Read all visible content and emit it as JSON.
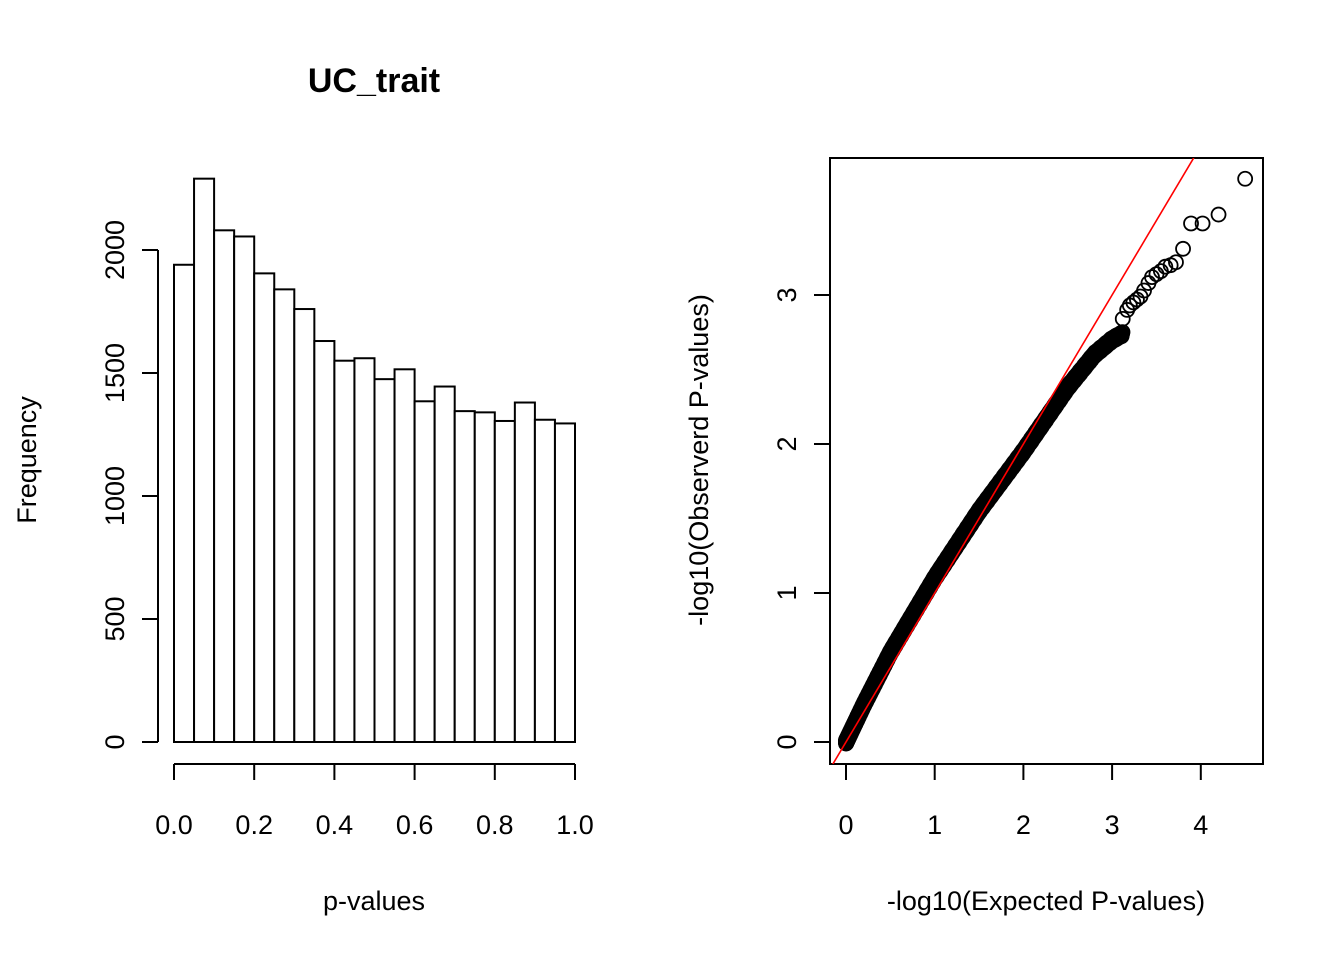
{
  "chart_data": [
    {
      "type": "bar",
      "title": "UC_trait",
      "xlabel": "p-values",
      "ylabel": "Frequency",
      "xlim": [
        0,
        1
      ],
      "ylim": [
        0,
        2300
      ],
      "x_ticks": [
        "0.0",
        "0.2",
        "0.4",
        "0.6",
        "0.8",
        "1.0"
      ],
      "y_ticks": [
        "0",
        "500",
        "1000",
        "1500",
        "2000"
      ],
      "bin_width": 0.05,
      "bins": [
        0.0,
        0.05,
        0.1,
        0.15,
        0.2,
        0.25,
        0.3,
        0.35,
        0.4,
        0.45,
        0.5,
        0.55,
        0.6,
        0.65,
        0.7,
        0.75,
        0.8,
        0.85,
        0.9,
        0.95
      ],
      "values": [
        1940,
        2290,
        2080,
        2055,
        1905,
        1840,
        1760,
        1630,
        1550,
        1560,
        1475,
        1515,
        1385,
        1445,
        1345,
        1340,
        1305,
        1380,
        1310,
        1295
      ]
    },
    {
      "type": "scatter",
      "title": "",
      "xlabel": "-log10(Expected P-values)",
      "ylabel": "-log10(Observerd P-values)",
      "xlim": [
        -0.18,
        4.7
      ],
      "ylim": [
        -0.14,
        3.9
      ],
      "x_ticks": [
        "0",
        "1",
        "2",
        "3",
        "4"
      ],
      "y_ticks": [
        "0",
        "1",
        "2",
        "3"
      ],
      "reference_line": {
        "slope": 1,
        "intercept": 0,
        "color": "#ff0000"
      },
      "n_points": 1000,
      "tail_points": {
        "x": [
          3.12,
          3.17,
          3.2,
          3.24,
          3.28,
          3.32,
          3.36,
          3.41,
          3.45,
          3.5,
          3.55,
          3.6,
          3.66,
          3.72,
          3.8,
          3.89,
          4.02,
          4.2,
          4.5
        ],
        "y": [
          2.84,
          2.9,
          2.93,
          2.95,
          2.97,
          2.99,
          3.03,
          3.08,
          3.12,
          3.14,
          3.16,
          3.19,
          3.2,
          3.22,
          3.31,
          3.48,
          3.48,
          3.54,
          3.78
        ]
      },
      "bulk_curve": {
        "x": [
          0,
          0.2,
          0.5,
          1.0,
          1.5,
          2.0,
          2.5,
          2.8,
          3.0,
          3.12
        ],
        "y": [
          0,
          0.25,
          0.6,
          1.1,
          1.55,
          1.95,
          2.38,
          2.6,
          2.7,
          2.74
        ]
      }
    }
  ]
}
